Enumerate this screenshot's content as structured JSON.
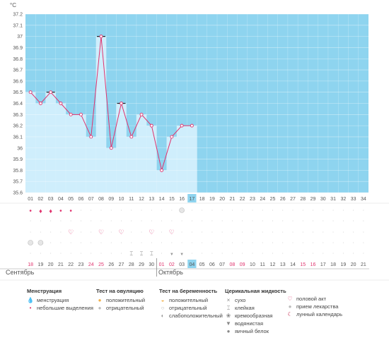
{
  "unit": "°C",
  "colors": {
    "future_fill": "#8ed4ef",
    "past_fill": "#cfeefc",
    "line": "#e0336e",
    "today": "#8ed4ef",
    "red_date": "#e0336e"
  },
  "months": [
    "Сентябрь",
    "Октябрь"
  ],
  "chart_data": {
    "type": "line",
    "title": "",
    "ylabel": "°C",
    "ylim": [
      35.6,
      37.2
    ],
    "yticks": [
      "35.6",
      "35.7",
      "35.8",
      "35.9",
      "36",
      "36.1",
      "36.2",
      "36.3",
      "36.4",
      "36.5",
      "36.6",
      "36.7",
      "36.8",
      "36.9",
      "37",
      "37.1",
      "37.2"
    ],
    "cycle_days": [
      "01",
      "02",
      "03",
      "04",
      "05",
      "06",
      "07",
      "08",
      "09",
      "10",
      "11",
      "12",
      "13",
      "14",
      "15",
      "16",
      "17",
      "18",
      "19",
      "20",
      "21",
      "22",
      "23",
      "24",
      "25",
      "26",
      "27",
      "28",
      "29",
      "30",
      "31",
      "32",
      "33",
      "34"
    ],
    "calendar_dates": [
      "18",
      "19",
      "20",
      "21",
      "22",
      "23",
      "24",
      "25",
      "26",
      "27",
      "28",
      "29",
      "30",
      "01",
      "02",
      "03",
      "04",
      "05",
      "06",
      "07",
      "08",
      "09",
      "10",
      "11",
      "12",
      "13",
      "14",
      "15",
      "16",
      "17",
      "18",
      "19",
      "20",
      "21"
    ],
    "red_dates": [
      0,
      6,
      7,
      13,
      14,
      20,
      21,
      27,
      28
    ],
    "today_index": 16,
    "month_break_index": 13,
    "series": [
      {
        "values": [
          36.5,
          36.4,
          36.5,
          36.4,
          36.3,
          36.3,
          36.1,
          37.0,
          36.0,
          36.4,
          36.1,
          36.3,
          36.2,
          35.8,
          36.1,
          36.2,
          36.2
        ]
      }
    ],
    "marked_points": [
      2,
      7,
      9
    ],
    "symbols": {
      "menstruation": [
        0,
        1,
        2,
        3,
        4
      ],
      "discharge_small": [
        0,
        3,
        4
      ],
      "intercourse": [
        4,
        7,
        9,
        12,
        14
      ],
      "pregnancy_test_neg": [
        0,
        1
      ],
      "ovulation_test": [
        15
      ],
      "sticky": [
        10,
        11,
        12
      ],
      "watery": [
        14,
        15
      ]
    }
  },
  "legend": {
    "menstruation": {
      "title": "Менструация",
      "items": [
        "менструация",
        "небольшие выделения"
      ]
    },
    "ovulation_test": {
      "title": "Тест на овуляцию",
      "items": [
        "положительный",
        "отрицательный"
      ]
    },
    "pregnancy_test": {
      "title": "Тест на беременность",
      "items": [
        "положительный",
        "отрицательный",
        "слабоположительный"
      ]
    },
    "cervical": {
      "title": "Церикальная жидкость",
      "items": [
        "сухо",
        "клейкая",
        "кремообразная",
        "водянистая",
        "яичный белок"
      ]
    },
    "other": {
      "items": [
        "половой акт",
        "прием лекарства",
        "лунный календарь"
      ]
    }
  }
}
